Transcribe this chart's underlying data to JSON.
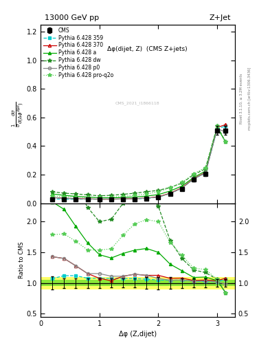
{
  "title_left": "13000 GeV pp",
  "title_right": "Z+Jet",
  "plot_title": "Δφ(dijet, Z)  (CMS Z+jets)",
  "ylabel_main": "$\\frac{1}{\\sigma}\\frac{d\\sigma}{d(\\Delta\\phi^{dijet})}$",
  "ylabel_ratio": "Ratio to CMS",
  "xlabel": "Δφ (Z,dijet)",
  "right_label_top": "Rivet 3.1.10, ≥ 3.2M events",
  "right_label_bottom": "mcplots.cern.ch [arXiv:1306.3436]",
  "watermark": "CMS_2021_I1866118",
  "x_cms": [
    0.2,
    0.4,
    0.6,
    0.8,
    1.0,
    1.2,
    1.4,
    1.6,
    1.8,
    2.0,
    2.2,
    2.4,
    2.6,
    2.8,
    3.0,
    3.14
  ],
  "y_cms": [
    0.028,
    0.025,
    0.025,
    0.026,
    0.026,
    0.027,
    0.027,
    0.028,
    0.032,
    0.04,
    0.065,
    0.1,
    0.165,
    0.205,
    0.51,
    0.51
  ],
  "y_cms_err": [
    0.003,
    0.002,
    0.002,
    0.002,
    0.002,
    0.002,
    0.002,
    0.002,
    0.003,
    0.004,
    0.006,
    0.008,
    0.012,
    0.015,
    0.03,
    0.03
  ],
  "cms_band_inner": 0.05,
  "cms_band_outer": 0.1,
  "py359_y": [
    0.03,
    0.028,
    0.028,
    0.028,
    0.028,
    0.029,
    0.029,
    0.03,
    0.034,
    0.042,
    0.068,
    0.105,
    0.17,
    0.21,
    0.52,
    0.54
  ],
  "py370_y": [
    0.04,
    0.035,
    0.032,
    0.03,
    0.028,
    0.028,
    0.03,
    0.032,
    0.036,
    0.045,
    0.07,
    0.108,
    0.172,
    0.215,
    0.53,
    0.55
  ],
  "pya_y": [
    0.065,
    0.055,
    0.048,
    0.043,
    0.038,
    0.038,
    0.04,
    0.043,
    0.05,
    0.06,
    0.085,
    0.12,
    0.18,
    0.225,
    0.53,
    0.43
  ],
  "pydw_y": [
    0.08,
    0.07,
    0.065,
    0.058,
    0.052,
    0.055,
    0.062,
    0.07,
    0.08,
    0.09,
    0.11,
    0.14,
    0.2,
    0.24,
    0.54,
    0.43
  ],
  "pyp0_y": [
    0.04,
    0.035,
    0.032,
    0.03,
    0.03,
    0.03,
    0.03,
    0.032,
    0.036,
    0.043,
    0.068,
    0.105,
    0.17,
    0.212,
    0.52,
    0.5
  ],
  "pyq2o_y": [
    0.05,
    0.045,
    0.042,
    0.04,
    0.04,
    0.042,
    0.048,
    0.055,
    0.065,
    0.08,
    0.108,
    0.145,
    0.205,
    0.25,
    0.54,
    0.43
  ],
  "py359_color": "#00cccc",
  "py370_color": "#cc0000",
  "pya_color": "#00aa00",
  "pydw_color": "#228B22",
  "pyp0_color": "#888888",
  "pyq2o_color": "#55cc55",
  "ylim_main": [
    0.0,
    1.25
  ],
  "ylim_ratio": [
    0.45,
    2.3
  ],
  "yticks_main": [
    0.0,
    0.2,
    0.4,
    0.6,
    0.8,
    1.0,
    1.2
  ],
  "yticks_ratio": [
    0.5,
    1.0,
    1.5,
    2.0
  ]
}
